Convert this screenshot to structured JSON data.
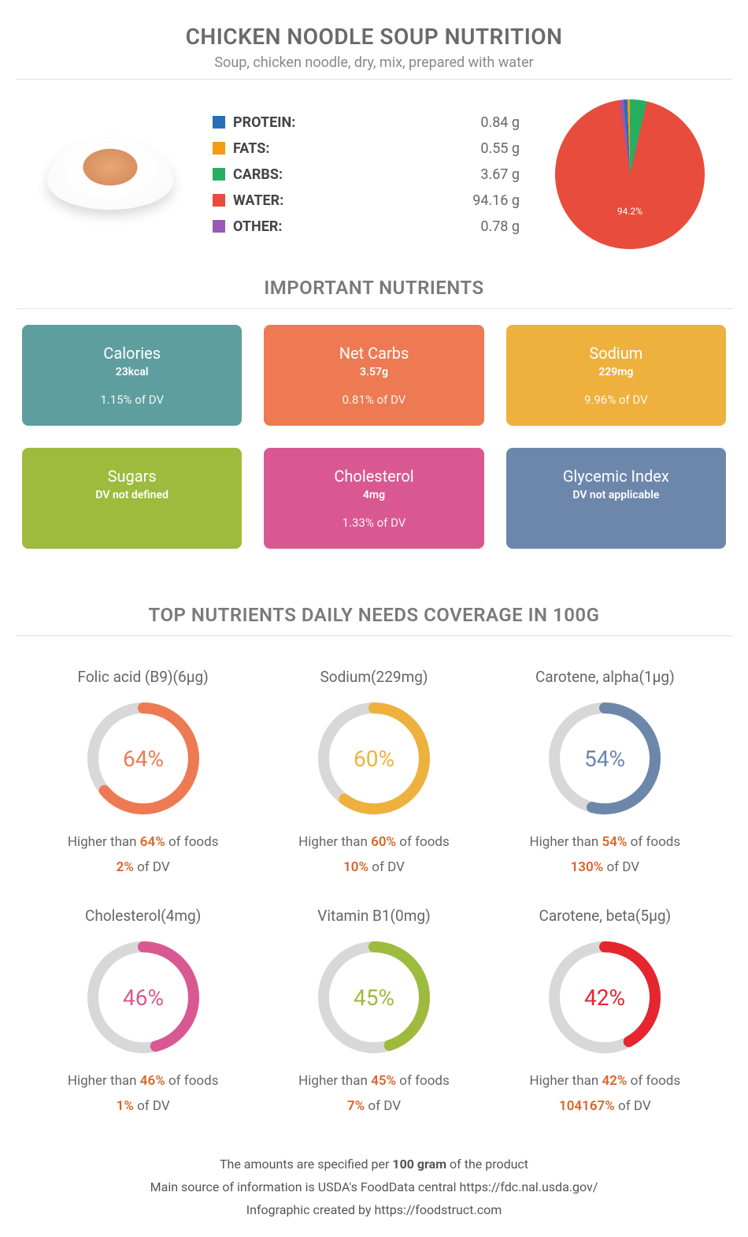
{
  "header": {
    "title": "CHICKEN NOODLE SOUP NUTRITION",
    "subtitle": "Soup, chicken noodle, dry, mix, prepared with water"
  },
  "macros": [
    {
      "label": "PROTEIN:",
      "value": "0.84 g",
      "color": "#2a6fb5"
    },
    {
      "label": "FATS:",
      "value": "0.55 g",
      "color": "#f39c12"
    },
    {
      "label": "CARBS:",
      "value": "3.67 g",
      "color": "#27ae60"
    },
    {
      "label": "WATER:",
      "value": "94.16 g",
      "color": "#e74c3c"
    },
    {
      "label": "OTHER:",
      "value": "0.78 g",
      "color": "#9b59b6"
    }
  ],
  "pie": {
    "slices": [
      {
        "pct": 0.84,
        "color": "#2a6fb5"
      },
      {
        "pct": 0.55,
        "color": "#f39c12"
      },
      {
        "pct": 3.67,
        "color": "#27ae60"
      },
      {
        "pct": 94.16,
        "color": "#e74c3c"
      },
      {
        "pct": 0.78,
        "color": "#9b59b6"
      }
    ],
    "label": "94.2%"
  },
  "section1_title": "IMPORTANT NUTRIENTS",
  "cards": [
    {
      "title": "Calories",
      "amount": "23kcal",
      "dv": "1.15% of DV",
      "bg": "#5f9e9e"
    },
    {
      "title": "Net Carbs",
      "amount": "3.57g",
      "dv": "0.81% of DV",
      "bg": "#ed7a53"
    },
    {
      "title": "Sodium",
      "amount": "229mg",
      "dv": "9.96% of DV",
      "bg": "#eeb13e"
    },
    {
      "title": "Sugars",
      "amount": "DV not defined",
      "dv": "",
      "bg": "#9ebb3d"
    },
    {
      "title": "Cholesterol",
      "amount": "4mg",
      "dv": "1.33% of DV",
      "bg": "#da5891"
    },
    {
      "title": "Glycemic Index",
      "amount": "DV not applicable",
      "dv": "",
      "bg": "#6d87ab"
    }
  ],
  "section2_title": "TOP NUTRIENTS DAILY NEEDS COVERAGE IN 100G",
  "donuts": [
    {
      "label": "Folic acid (B9)(6µg)",
      "pct": 64,
      "color": "#ed7a53",
      "foot_pct": "64%",
      "dv": "2%"
    },
    {
      "label": "Sodium(229mg)",
      "pct": 60,
      "color": "#eeb13e",
      "foot_pct": "60%",
      "dv": "10%"
    },
    {
      "label": "Carotene, alpha(1µg)",
      "pct": 54,
      "color": "#6d87ab",
      "foot_pct": "54%",
      "dv": "130%"
    },
    {
      "label": "Cholesterol(4mg)",
      "pct": 46,
      "color": "#da5891",
      "foot_pct": "46%",
      "dv": "1%"
    },
    {
      "label": "Vitamin B1(0mg)",
      "pct": 45,
      "color": "#9ebb3d",
      "foot_pct": "45%",
      "dv": "7%"
    },
    {
      "label": "Carotene, beta(5µg)",
      "pct": 42,
      "color": "#e5262f",
      "foot_pct": "42%",
      "dv": "104167%"
    }
  ],
  "footer": {
    "line1_a": "The amounts are specified per ",
    "line1_b": "100 gram",
    "line1_c": " of the product",
    "line2": "Main source of information is USDA's FoodData central https://fdc.nal.usda.gov/",
    "line3": "Infographic created by https://foodstruct.com"
  },
  "donut_track_color": "#d8d8d8",
  "hl_color": "#d9652a"
}
